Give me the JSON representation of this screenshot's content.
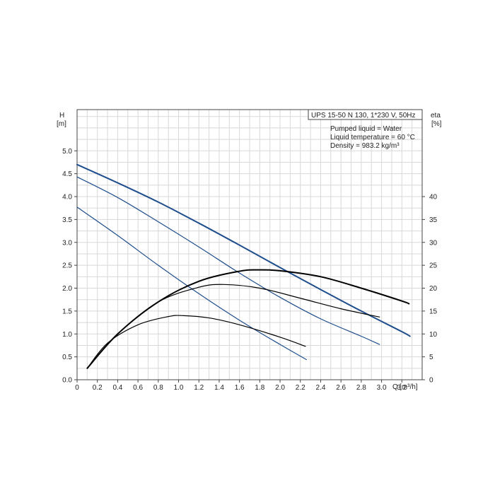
{
  "chart_data": {
    "type": "line",
    "title": "UPS 15-50 N 130, 1*230 V, 50Hz",
    "info_lines": [
      "Pumped liquid = Water",
      "Liquid temperature = 60 °C",
      "Density = 983.2 kg/m³"
    ],
    "xlabel": "Q",
    "xunit": "[m³/h]",
    "ylabel_left": "H",
    "yunit_left": "[m]",
    "ylabel_right": "eta",
    "yunit_right": "[%]",
    "xlim": [
      0,
      3.4
    ],
    "ylim_left": [
      0,
      5.9
    ],
    "ylim_right": [
      0,
      59
    ],
    "grid": true,
    "x_ticks": [
      "0",
      "0.2",
      "0.4",
      "0.6",
      "0.8",
      "1.0",
      "1.2",
      "1.4",
      "1.6",
      "1.8",
      "2.0",
      "2.2",
      "2.4",
      "2.6",
      "2.8",
      "3.0",
      "3.2"
    ],
    "x_tick_values": [
      0,
      0.2,
      0.4,
      0.6,
      0.8,
      1.0,
      1.2,
      1.4,
      1.6,
      1.8,
      2.0,
      2.2,
      2.4,
      2.6,
      2.8,
      3.0,
      3.2
    ],
    "y_left_ticks": [
      "0.0",
      "0.5",
      "1.0",
      "1.5",
      "2.0",
      "2.5",
      "3.0",
      "3.5",
      "4.0",
      "4.5",
      "5.0"
    ],
    "y_left_tick_values": [
      0,
      0.5,
      1.0,
      1.5,
      2.0,
      2.5,
      3.0,
      3.5,
      4.0,
      4.5,
      5.0
    ],
    "y_right_ticks": [
      "0",
      "5",
      "10",
      "15",
      "20",
      "25",
      "30",
      "35",
      "40"
    ],
    "y_right_tick_values": [
      0,
      5,
      10,
      15,
      20,
      25,
      30,
      35,
      40
    ],
    "series": [
      {
        "kind": "head",
        "color": "#1f4e8c",
        "width": 2,
        "x": [
          0,
          0.4,
          0.8,
          1.2,
          1.6,
          2.0,
          2.4,
          2.8,
          3.2,
          3.28
        ],
        "y": [
          4.7,
          4.3,
          3.88,
          3.42,
          2.94,
          2.45,
          1.97,
          1.5,
          1.05,
          0.95
        ]
      },
      {
        "kind": "head",
        "color": "#1f4e8c",
        "width": 1.2,
        "x": [
          0,
          0.4,
          0.8,
          1.2,
          1.6,
          2.0,
          2.4,
          2.8,
          2.98
        ],
        "y": [
          4.43,
          3.98,
          3.45,
          2.9,
          2.33,
          1.8,
          1.33,
          0.95,
          0.77
        ]
      },
      {
        "kind": "head",
        "color": "#1f4e8c",
        "width": 1.2,
        "x": [
          0,
          0.4,
          0.8,
          1.2,
          1.6,
          2.0,
          2.26
        ],
        "y": [
          3.77,
          3.15,
          2.5,
          1.88,
          1.3,
          0.77,
          0.44
        ]
      },
      {
        "kind": "efficiency",
        "color": "#000000",
        "width": 2,
        "x": [
          0.1,
          0.4,
          0.8,
          1.2,
          1.6,
          1.8,
          2.0,
          2.4,
          2.8,
          3.2,
          3.27
        ],
        "y": [
          0.25,
          1.0,
          1.7,
          2.15,
          2.37,
          2.4,
          2.38,
          2.25,
          2.0,
          1.72,
          1.66
        ]
      },
      {
        "kind": "efficiency",
        "color": "#000000",
        "width": 1.2,
        "x": [
          0.1,
          0.4,
          0.8,
          1.2,
          1.45,
          1.8,
          2.2,
          2.6,
          2.98
        ],
        "y": [
          0.25,
          1.0,
          1.7,
          2.02,
          2.08,
          2.0,
          1.78,
          1.55,
          1.37
        ]
      },
      {
        "kind": "efficiency",
        "color": "#000000",
        "width": 1.2,
        "x": [
          0.1,
          0.3,
          0.6,
          0.9,
          1.05,
          1.3,
          1.6,
          2.0,
          2.25
        ],
        "y": [
          0.25,
          0.8,
          1.2,
          1.38,
          1.4,
          1.35,
          1.2,
          0.93,
          0.73
        ]
      }
    ]
  }
}
